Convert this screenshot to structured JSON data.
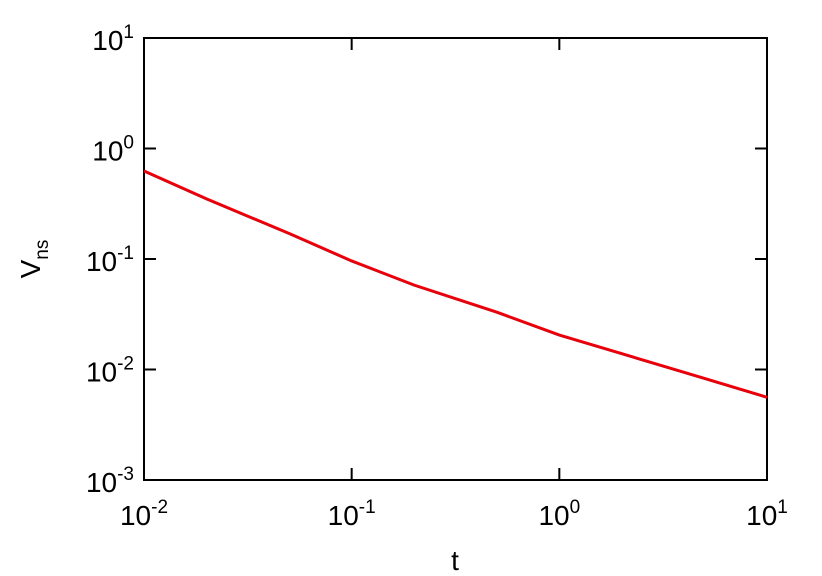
{
  "chart_data": {
    "type": "line",
    "log_x": true,
    "log_y": true,
    "xlabel": "t",
    "ylabel": {
      "base": "V",
      "sub": "ns"
    },
    "x": [
      0.01,
      0.02,
      0.05,
      0.1,
      0.2,
      0.5,
      1,
      2,
      5,
      10
    ],
    "series": [
      {
        "color": "#e8000b",
        "values": [
          0.625,
          0.35,
          0.17,
          0.096,
          0.058,
          0.033,
          0.0205,
          0.0139,
          0.0083,
          0.0056
        ]
      }
    ],
    "xlim": [
      0.01,
      10
    ],
    "ylim": [
      0.001,
      10
    ],
    "xticks": [
      {
        "value": 0.01,
        "label": {
          "base": "10",
          "exp": "-2"
        }
      },
      {
        "value": 0.1,
        "label": {
          "base": "10",
          "exp": "-1"
        }
      },
      {
        "value": 1,
        "label": {
          "base": "10",
          "exp": "0"
        }
      },
      {
        "value": 10,
        "label": {
          "base": "10",
          "exp": "1"
        }
      }
    ],
    "yticks": [
      {
        "value": 0.001,
        "label": {
          "base": "10",
          "exp": "-3"
        }
      },
      {
        "value": 0.01,
        "label": {
          "base": "10",
          "exp": "-2"
        }
      },
      {
        "value": 0.1,
        "label": {
          "base": "10",
          "exp": "-1"
        }
      },
      {
        "value": 1,
        "label": {
          "base": "10",
          "exp": "0"
        }
      },
      {
        "value": 10,
        "label": {
          "base": "10",
          "exp": "1"
        }
      }
    ],
    "grid": false
  }
}
